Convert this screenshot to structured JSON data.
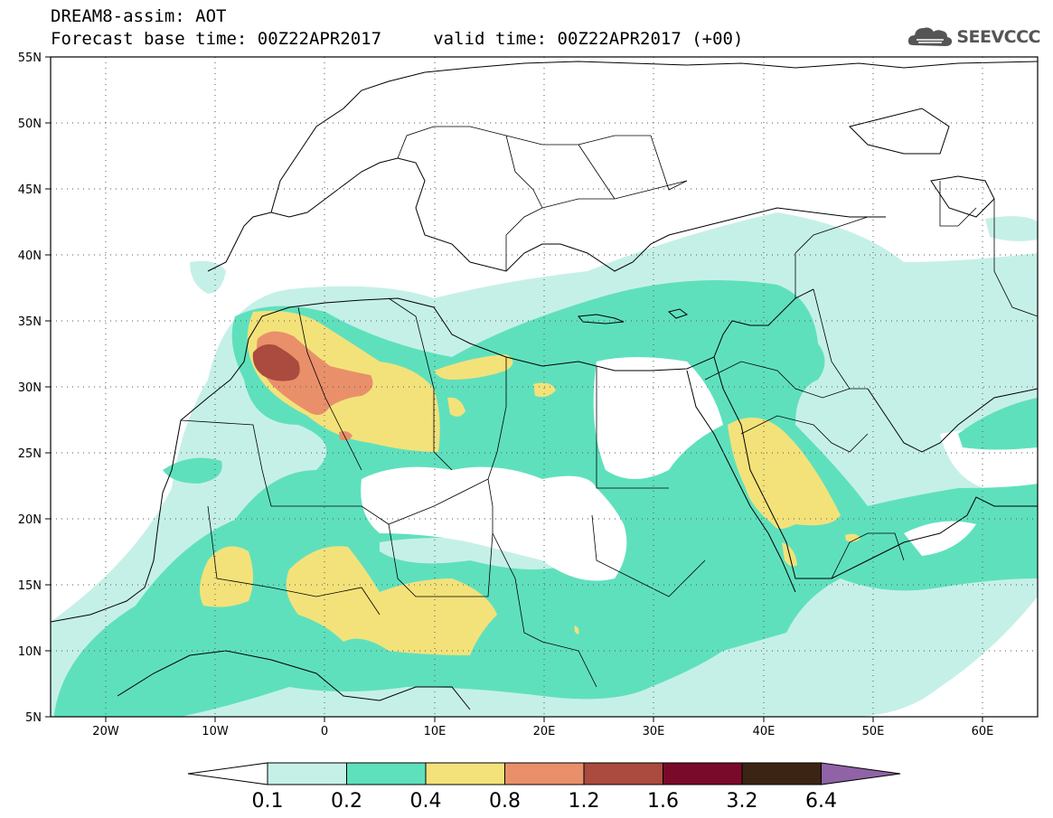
{
  "header": {
    "title": "DREAM8-assim: AOT",
    "subtitle": "Forecast base time: 00Z22APR2017     valid time: 00Z22APR2017 (+00)"
  },
  "logo": {
    "text": "SEEVCCC",
    "icon": "cloud-icon"
  },
  "map": {
    "lat_labels": [
      "55N",
      "50N",
      "45N",
      "40N",
      "35N",
      "30N",
      "25N",
      "20N",
      "15N",
      "10N",
      "5N"
    ],
    "lon_labels": [
      "20W",
      "10W",
      "0",
      "10E",
      "20E",
      "30E",
      "40E",
      "50E",
      "60E"
    ],
    "extent": {
      "lon_min": -25,
      "lon_max": 65,
      "lat_min": 5,
      "lat_max": 55
    }
  },
  "legend": {
    "labels": [
      "0.1",
      "0.2",
      "0.4",
      "0.8",
      "1.2",
      "1.6",
      "3.2",
      "6.4"
    ],
    "colors": [
      "#ffffff",
      "#c5f0e8",
      "#5fe0bd",
      "#f3e27a",
      "#e9906a",
      "#ab4a3e",
      "#7a0a2a",
      "#3c2414",
      "#8f63a6"
    ]
  }
}
